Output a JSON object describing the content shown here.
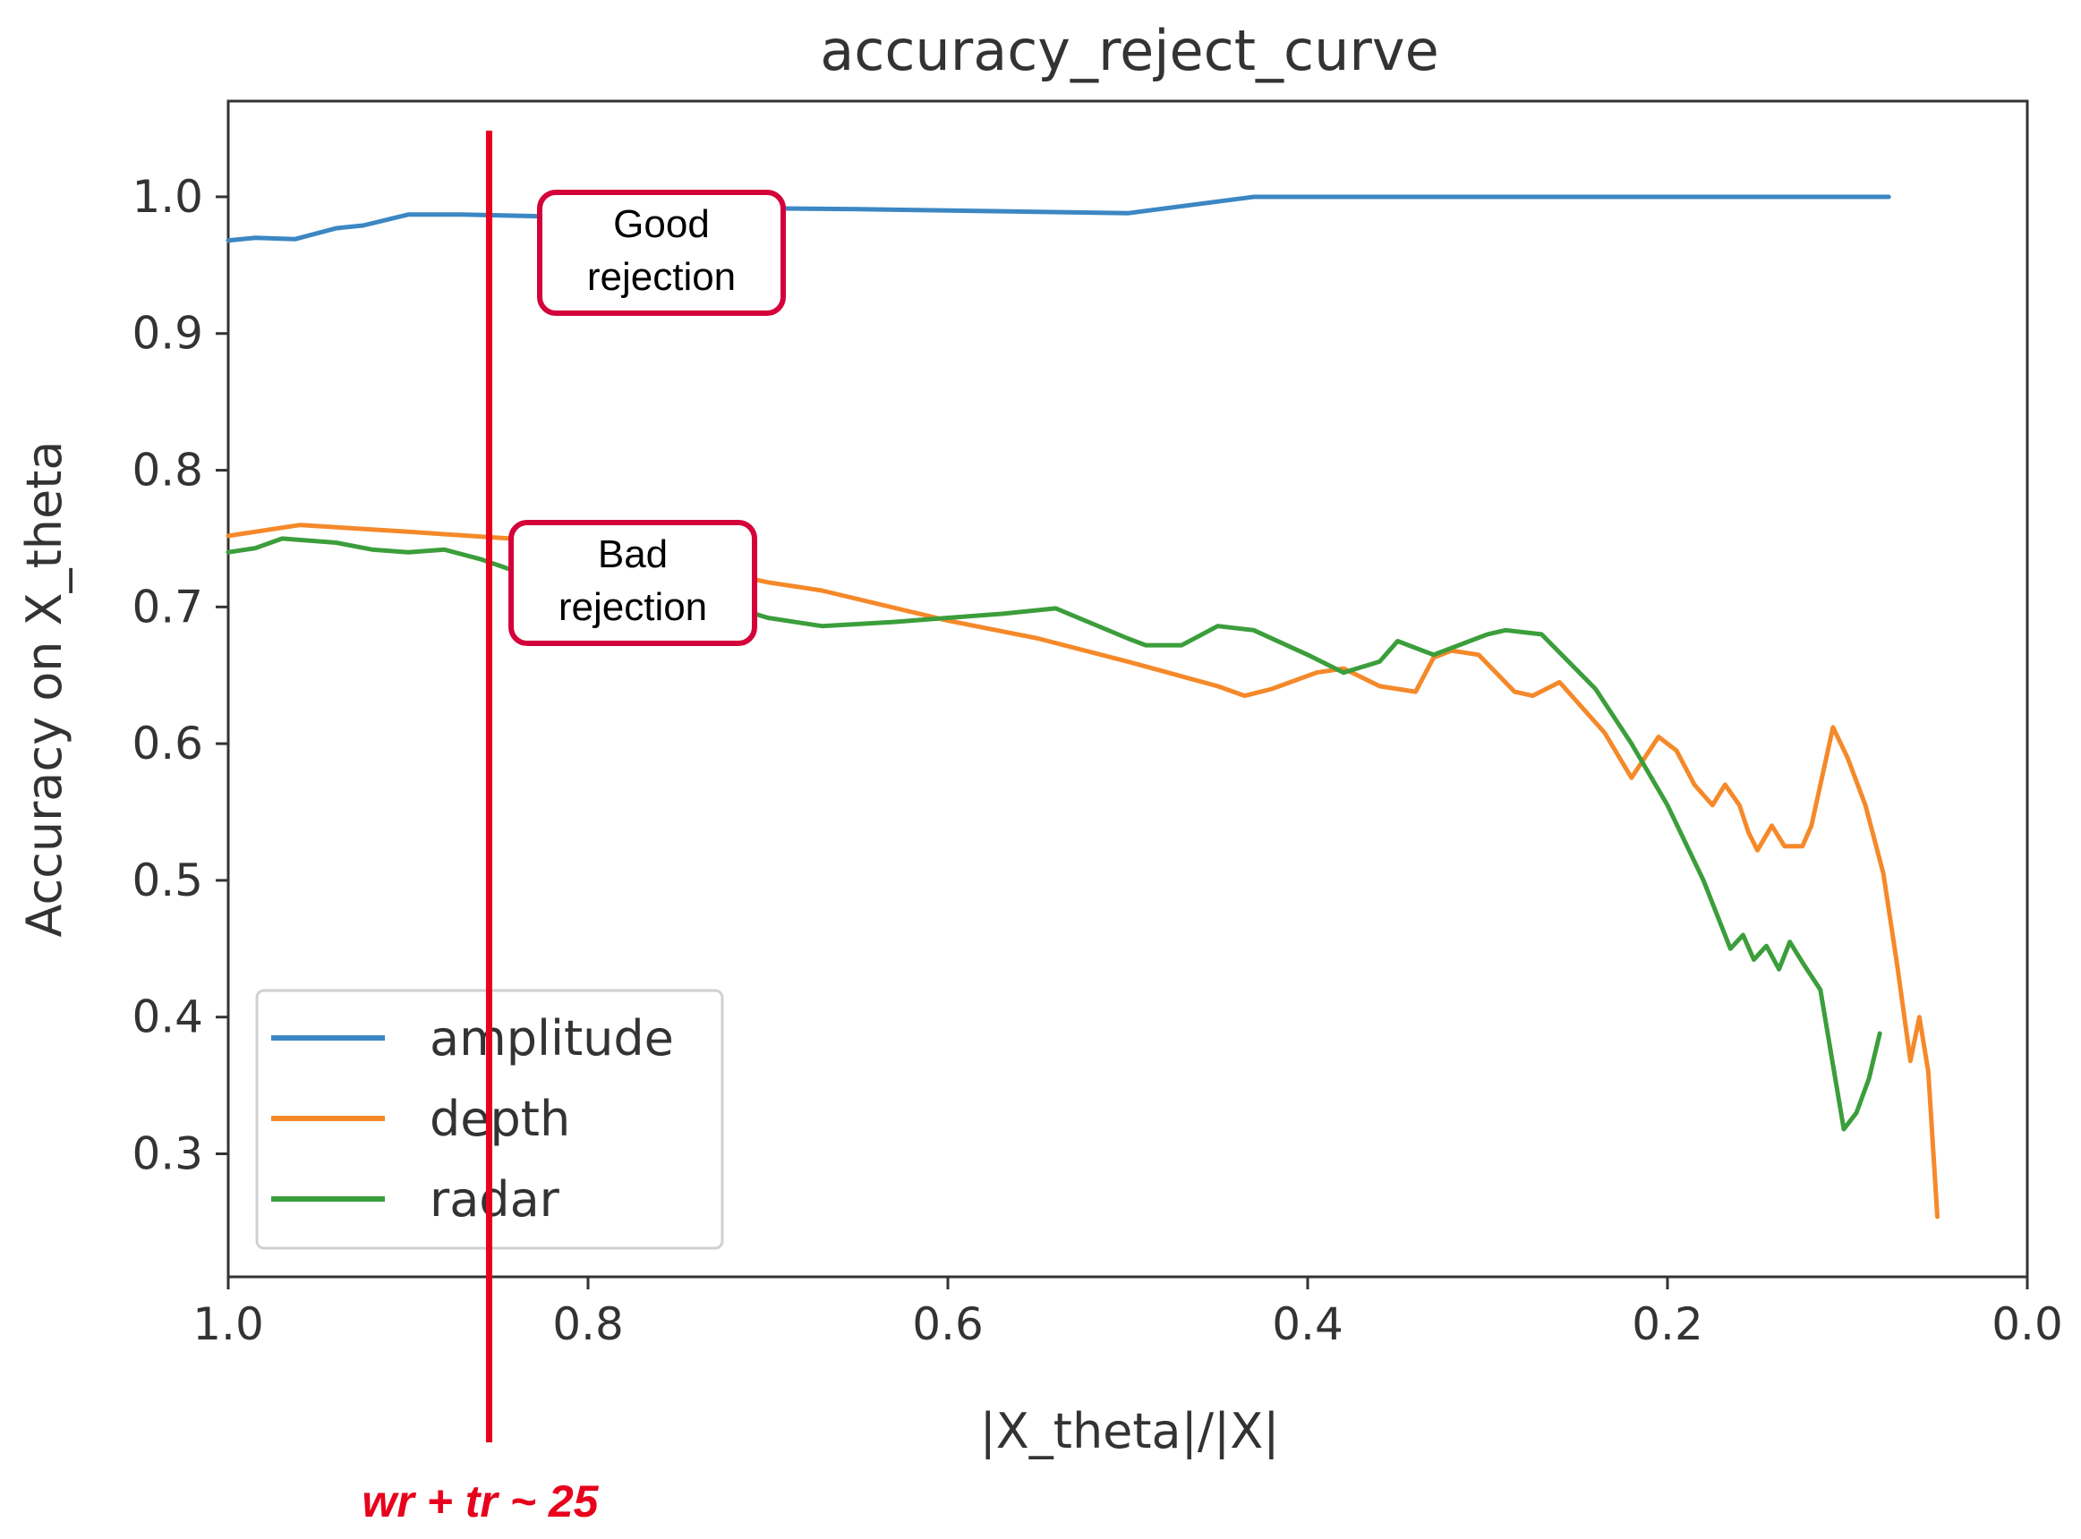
{
  "chart_data": {
    "type": "line",
    "title": "accuracy_reject_curve",
    "xlabel": "|X_theta|/|X|",
    "ylabel": "Accuracy on X_theta",
    "xlim": [
      1.0,
      0.0
    ],
    "ylim": [
      0.21,
      1.07
    ],
    "x_ticks": [
      1.0,
      0.8,
      0.6,
      0.4,
      0.2,
      0.0
    ],
    "x_tick_labels": [
      "1.0",
      "0.8",
      "0.6",
      "0.4",
      "0.2",
      "0.0"
    ],
    "y_ticks": [
      0.3,
      0.4,
      0.5,
      0.6,
      0.7,
      0.8,
      0.9,
      1.0
    ],
    "y_tick_labels": [
      "0.3",
      "0.4",
      "0.5",
      "0.6",
      "0.7",
      "0.8",
      "0.9",
      "1.0"
    ],
    "grid": false,
    "legend_position": "lower-left",
    "series": [
      {
        "name": "amplitude",
        "color": "#3c87c3",
        "points": [
          [
            1.0,
            0.968
          ],
          [
            0.985,
            0.97
          ],
          [
            0.963,
            0.969
          ],
          [
            0.94,
            0.977
          ],
          [
            0.925,
            0.979
          ],
          [
            0.9,
            0.987
          ],
          [
            0.87,
            0.987
          ],
          [
            0.8,
            0.985
          ],
          [
            0.765,
            0.985
          ],
          [
            0.735,
            0.992
          ],
          [
            0.65,
            0.991
          ],
          [
            0.5,
            0.988
          ],
          [
            0.43,
            1.0
          ],
          [
            0.3,
            1.0
          ],
          [
            0.2,
            1.0
          ],
          [
            0.077,
            1.0
          ]
        ]
      },
      {
        "name": "depth",
        "color": "#f5892a",
        "points": [
          [
            1.0,
            0.752
          ],
          [
            0.96,
            0.76
          ],
          [
            0.9,
            0.755
          ],
          [
            0.82,
            0.748
          ],
          [
            0.76,
            0.735
          ],
          [
            0.7,
            0.718
          ],
          [
            0.67,
            0.712
          ],
          [
            0.6,
            0.69
          ],
          [
            0.55,
            0.677
          ],
          [
            0.5,
            0.66
          ],
          [
            0.45,
            0.642
          ],
          [
            0.435,
            0.635
          ],
          [
            0.42,
            0.64
          ],
          [
            0.395,
            0.652
          ],
          [
            0.38,
            0.655
          ],
          [
            0.36,
            0.642
          ],
          [
            0.34,
            0.638
          ],
          [
            0.33,
            0.663
          ],
          [
            0.32,
            0.668
          ],
          [
            0.305,
            0.665
          ],
          [
            0.285,
            0.638
          ],
          [
            0.275,
            0.635
          ],
          [
            0.26,
            0.645
          ],
          [
            0.235,
            0.608
          ],
          [
            0.22,
            0.575
          ],
          [
            0.205,
            0.605
          ],
          [
            0.195,
            0.595
          ],
          [
            0.185,
            0.57
          ],
          [
            0.175,
            0.555
          ],
          [
            0.168,
            0.57
          ],
          [
            0.16,
            0.555
          ],
          [
            0.155,
            0.535
          ],
          [
            0.15,
            0.522
          ],
          [
            0.142,
            0.54
          ],
          [
            0.135,
            0.525
          ],
          [
            0.125,
            0.525
          ],
          [
            0.12,
            0.54
          ],
          [
            0.108,
            0.612
          ],
          [
            0.1,
            0.59
          ],
          [
            0.09,
            0.555
          ],
          [
            0.08,
            0.505
          ],
          [
            0.072,
            0.435
          ],
          [
            0.065,
            0.368
          ],
          [
            0.06,
            0.4
          ],
          [
            0.055,
            0.36
          ],
          [
            0.05,
            0.254
          ]
        ]
      },
      {
        "name": "radar",
        "color": "#3b9e3b",
        "points": [
          [
            1.0,
            0.74
          ],
          [
            0.985,
            0.743
          ],
          [
            0.97,
            0.75
          ],
          [
            0.94,
            0.747
          ],
          [
            0.92,
            0.742
          ],
          [
            0.9,
            0.74
          ],
          [
            0.88,
            0.742
          ],
          [
            0.86,
            0.735
          ],
          [
            0.84,
            0.726
          ],
          [
            0.8,
            0.72
          ],
          [
            0.76,
            0.705
          ],
          [
            0.72,
            0.7
          ],
          [
            0.7,
            0.692
          ],
          [
            0.67,
            0.686
          ],
          [
            0.63,
            0.689
          ],
          [
            0.57,
            0.695
          ],
          [
            0.54,
            0.699
          ],
          [
            0.5,
            0.677
          ],
          [
            0.49,
            0.672
          ],
          [
            0.47,
            0.672
          ],
          [
            0.45,
            0.686
          ],
          [
            0.43,
            0.683
          ],
          [
            0.4,
            0.665
          ],
          [
            0.38,
            0.652
          ],
          [
            0.36,
            0.66
          ],
          [
            0.35,
            0.675
          ],
          [
            0.33,
            0.665
          ],
          [
            0.3,
            0.68
          ],
          [
            0.29,
            0.683
          ],
          [
            0.27,
            0.68
          ],
          [
            0.24,
            0.64
          ],
          [
            0.22,
            0.6
          ],
          [
            0.2,
            0.555
          ],
          [
            0.18,
            0.5
          ],
          [
            0.165,
            0.45
          ],
          [
            0.158,
            0.46
          ],
          [
            0.152,
            0.442
          ],
          [
            0.145,
            0.452
          ],
          [
            0.138,
            0.435
          ],
          [
            0.132,
            0.455
          ],
          [
            0.125,
            0.44
          ],
          [
            0.115,
            0.42
          ],
          [
            0.108,
            0.365
          ],
          [
            0.102,
            0.318
          ],
          [
            0.095,
            0.33
          ],
          [
            0.088,
            0.355
          ],
          [
            0.082,
            0.388
          ]
        ]
      }
    ],
    "annotations": [
      {
        "name": "good-rejection",
        "lines": [
          "Good",
          "rejection"
        ],
        "box_color": "#d4003a"
      },
      {
        "name": "bad-rejection",
        "lines": [
          "Bad",
          "rejection"
        ],
        "box_color": "#d4003a"
      }
    ],
    "marker_line": {
      "x": 0.855,
      "label": "wr + tr ~ 25",
      "color": "#e8001c"
    }
  }
}
